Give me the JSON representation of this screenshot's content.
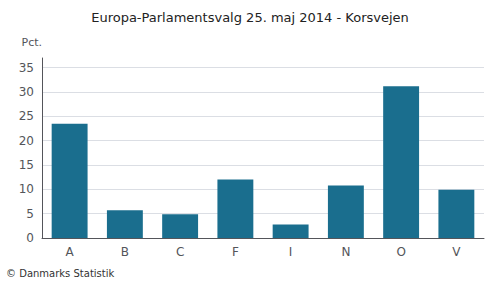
{
  "chart_data": {
    "type": "bar",
    "title": "Europa-Parlamentsvalg 25. maj 2014 - Korsvejen",
    "categories": [
      "A",
      "B",
      "C",
      "F",
      "I",
      "N",
      "O",
      "V"
    ],
    "values": [
      23.5,
      5.7,
      4.9,
      12.0,
      2.8,
      10.8,
      31.2,
      9.9
    ],
    "color": "#1a6e8e",
    "ylabel": "Pct.",
    "footer": "© Danmarks Statistik",
    "ylim": [
      0,
      37
    ],
    "yticks": [
      0,
      5,
      10,
      15,
      20,
      25,
      30,
      35
    ],
    "grid": true
  }
}
